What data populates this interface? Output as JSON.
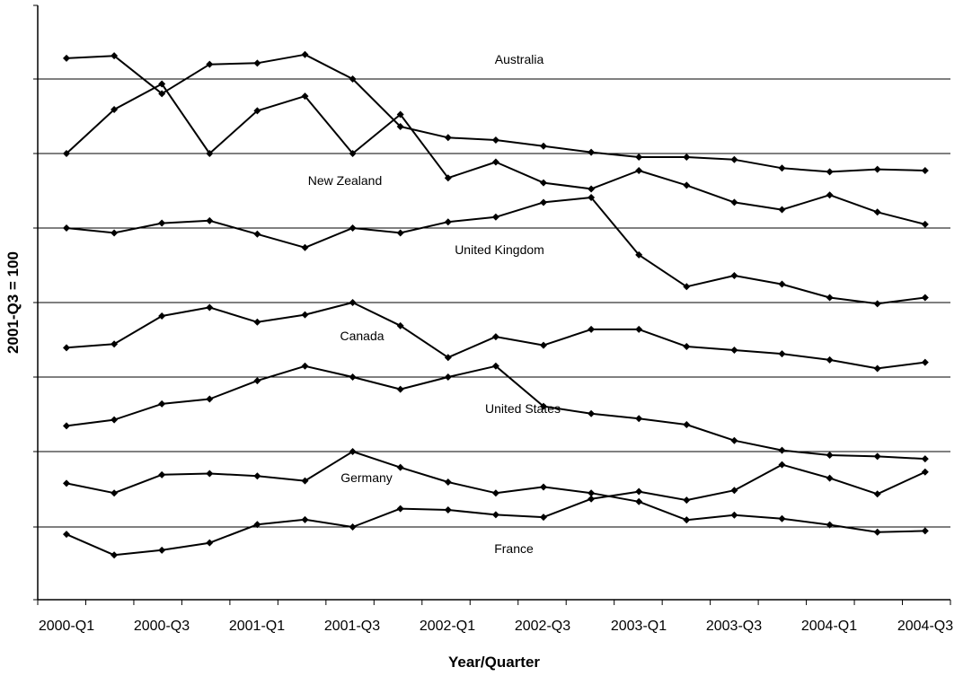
{
  "chart_data": {
    "type": "line",
    "title": "",
    "xlabel": "Year/Quarter",
    "ylabel": "2001-Q3 = 100",
    "x": [
      "2000-Q1",
      "2000-Q2",
      "2000-Q3",
      "2000-Q4",
      "2001-Q1",
      "2001-Q2",
      "2001-Q3",
      "2001-Q4",
      "2002-Q1",
      "2002-Q2",
      "2002-Q3",
      "2002-Q4",
      "2003-Q1",
      "2003-Q2",
      "2003-Q3",
      "2003-Q4",
      "2004-Q1",
      "2004-Q2",
      "2004-Q3"
    ],
    "x_tick_labels": [
      "2000-Q1",
      "2000-Q3",
      "2001-Q1",
      "2001-Q3",
      "2002-Q1",
      "2002-Q3",
      "2003-Q1",
      "2003-Q3",
      "2004-Q1",
      "2004-Q3"
    ],
    "y_tick_labels": [],
    "grid": "horizontal",
    "legend": "none (series labelled on chart)",
    "series": [
      {
        "name": "Australia",
        "index_level": 100.0,
        "values": [
          101.7,
          101.9,
          98.8,
          101.2,
          101.3,
          102.0,
          100.0,
          96.1,
          95.2,
          95.0,
          94.5,
          94.0,
          93.6,
          93.6,
          93.4,
          92.7,
          92.4,
          92.6,
          92.5
        ]
      },
      {
        "name": "New Zealand",
        "index_level": 100.0,
        "values": [
          100.0,
          103.6,
          105.7,
          100.0,
          103.5,
          104.7,
          100.0,
          103.2,
          98.0,
          99.3,
          97.6,
          97.1,
          98.6,
          97.4,
          96.0,
          95.4,
          96.6,
          95.2,
          94.2
        ]
      },
      {
        "name": "United Kingdom",
        "index_level": 100.0,
        "values": [
          100.0,
          99.6,
          100.4,
          100.6,
          99.5,
          98.4,
          100.0,
          99.6,
          100.5,
          100.9,
          102.1,
          102.5,
          97.8,
          95.2,
          96.1,
          95.4,
          94.3,
          93.8,
          94.3
        ]
      },
      {
        "name": "Canada",
        "index_level": 100.0,
        "values": [
          96.3,
          96.6,
          98.9,
          99.6,
          98.4,
          99.0,
          100.0,
          98.1,
          95.5,
          97.2,
          96.5,
          97.8,
          97.8,
          96.4,
          96.1,
          95.8,
          95.3,
          94.6,
          95.1
        ]
      },
      {
        "name": "United States",
        "index_level": 100.0,
        "values": [
          96.0,
          96.5,
          97.8,
          98.2,
          99.7,
          100.9,
          100.0,
          99.0,
          100.0,
          100.9,
          97.6,
          97.0,
          96.6,
          96.1,
          94.8,
          94.0,
          93.6,
          93.5,
          93.3
        ]
      },
      {
        "name": "Germany",
        "index_level": 100.0,
        "values": [
          97.4,
          96.6,
          98.1,
          98.2,
          98.0,
          97.6,
          100.0,
          98.7,
          97.5,
          96.6,
          97.1,
          96.6,
          95.9,
          94.4,
          94.8,
          94.5,
          94.0,
          93.4,
          93.5
        ]
      },
      {
        "name": "France",
        "index_level": 100.0,
        "values": [
          99.4,
          97.7,
          98.1,
          98.7,
          100.2,
          100.6,
          100.0,
          101.5,
          101.4,
          101.0,
          100.8,
          102.3,
          102.9,
          102.2,
          103.0,
          105.1,
          104.0,
          102.7,
          104.5
        ]
      }
    ]
  }
}
